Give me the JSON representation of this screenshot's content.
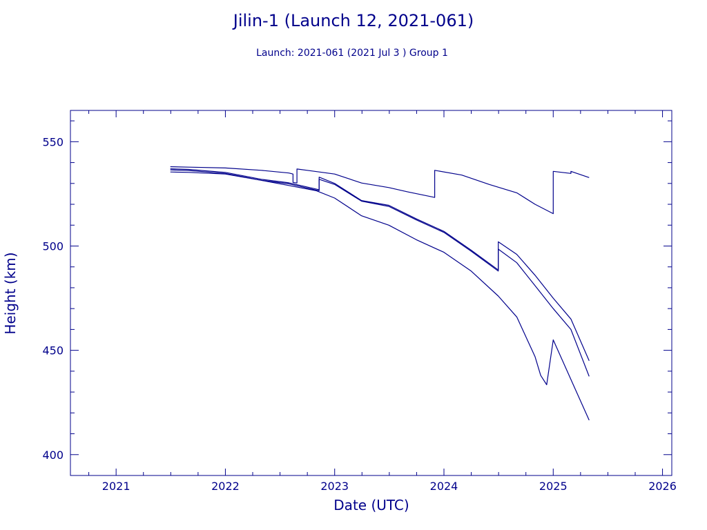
{
  "chart_data": {
    "type": "line",
    "title": "Jilin-1 (Launch 12, 2021-061)",
    "subtitle": "Launch: 2021-061  (2021 Jul  3 )  Group 1",
    "xlabel": "Date (UTC)",
    "ylabel": "Height (km)",
    "xlim": [
      "2020-08-01",
      "2026-02-01"
    ],
    "ylim": [
      390,
      565
    ],
    "x_ticks": [
      "2021",
      "2022",
      "2023",
      "2024",
      "2025",
      "2026"
    ],
    "y_ticks": [
      "400",
      "450",
      "500",
      "550"
    ],
    "grid": false,
    "line_color": "#00008b",
    "series": [
      {
        "points": [
          [
            "2021-07-01",
            538
          ],
          [
            "2021-09-01",
            537.8
          ],
          [
            "2022-01-01",
            537.4
          ],
          [
            "2022-05-01",
            536.3
          ],
          [
            "2022-08-01",
            535
          ],
          [
            "2022-08-15",
            534.5
          ],
          [
            "2022-08-15",
            530.5
          ],
          [
            "2022-08-28",
            530.2
          ],
          [
            "2022-08-28",
            536.9
          ],
          [
            "2022-10-01",
            536.3
          ],
          [
            "2023-01-01",
            534.5
          ],
          [
            "2023-04-01",
            530.2
          ],
          [
            "2023-07-01",
            528
          ],
          [
            "2023-09-01",
            526
          ],
          [
            "2023-12-01",
            523.3
          ],
          [
            "2023-12-01",
            536.3
          ],
          [
            "2024-03-01",
            534
          ],
          [
            "2024-06-01",
            529.5
          ],
          [
            "2024-09-01",
            525.5
          ],
          [
            "2024-11-01",
            520
          ],
          [
            "2025-01-01",
            515.5
          ],
          [
            "2025-01-01",
            535.8
          ],
          [
            "2025-03-01",
            534.8
          ],
          [
            "2025-03-01",
            535.8
          ],
          [
            "2025-05-01",
            532.8
          ]
        ]
      },
      {
        "points": [
          [
            "2021-07-01",
            537
          ],
          [
            "2021-09-01",
            536.7
          ],
          [
            "2022-01-01",
            535.3
          ],
          [
            "2022-05-01",
            532
          ],
          [
            "2022-08-01",
            530.3
          ],
          [
            "2022-11-10",
            527
          ],
          [
            "2022-11-10",
            533
          ],
          [
            "2023-01-01",
            530
          ],
          [
            "2023-04-01",
            521.8
          ],
          [
            "2023-07-01",
            519.5
          ],
          [
            "2023-10-01",
            513
          ],
          [
            "2024-01-01",
            507
          ],
          [
            "2024-04-01",
            498
          ],
          [
            "2024-07-01",
            488.5
          ],
          [
            "2024-07-01",
            502
          ],
          [
            "2024-09-01",
            496
          ],
          [
            "2024-11-01",
            486
          ],
          [
            "2025-01-01",
            475
          ],
          [
            "2025-03-01",
            465
          ],
          [
            "2025-05-01",
            445
          ]
        ]
      },
      {
        "points": [
          [
            "2021-07-01",
            536.5
          ],
          [
            "2021-09-01",
            536.2
          ],
          [
            "2022-01-01",
            534.8
          ],
          [
            "2022-05-01",
            531.5
          ],
          [
            "2022-08-01",
            529.8
          ],
          [
            "2022-11-10",
            526.5
          ],
          [
            "2022-11-10",
            532
          ],
          [
            "2023-01-01",
            529.5
          ],
          [
            "2023-04-01",
            521.5
          ],
          [
            "2023-07-01",
            519
          ],
          [
            "2023-10-01",
            512.5
          ],
          [
            "2024-01-01",
            506.5
          ],
          [
            "2024-04-01",
            497.5
          ],
          [
            "2024-07-01",
            488
          ],
          [
            "2024-07-01",
            498.5
          ],
          [
            "2024-09-01",
            492
          ],
          [
            "2024-11-01",
            481
          ],
          [
            "2025-01-01",
            470
          ],
          [
            "2025-03-01",
            460
          ],
          [
            "2025-05-01",
            437.5
          ]
        ]
      },
      {
        "points": [
          [
            "2021-07-01",
            535.5
          ],
          [
            "2021-09-01",
            535.3
          ],
          [
            "2022-01-01",
            534.5
          ],
          [
            "2022-05-01",
            531.5
          ],
          [
            "2022-08-01",
            529
          ],
          [
            "2022-11-01",
            526.5
          ],
          [
            "2023-01-01",
            523
          ],
          [
            "2023-04-01",
            514.5
          ],
          [
            "2023-07-01",
            510
          ],
          [
            "2023-10-01",
            503
          ],
          [
            "2024-01-01",
            497
          ],
          [
            "2024-04-01",
            488
          ],
          [
            "2024-07-01",
            476
          ],
          [
            "2024-09-01",
            466
          ],
          [
            "2024-11-01",
            447
          ],
          [
            "2024-11-20",
            438
          ],
          [
            "2024-12-10",
            433.5
          ],
          [
            "2025-01-01",
            455
          ],
          [
            "2025-03-01",
            436
          ],
          [
            "2025-05-01",
            416.5
          ]
        ]
      }
    ]
  }
}
